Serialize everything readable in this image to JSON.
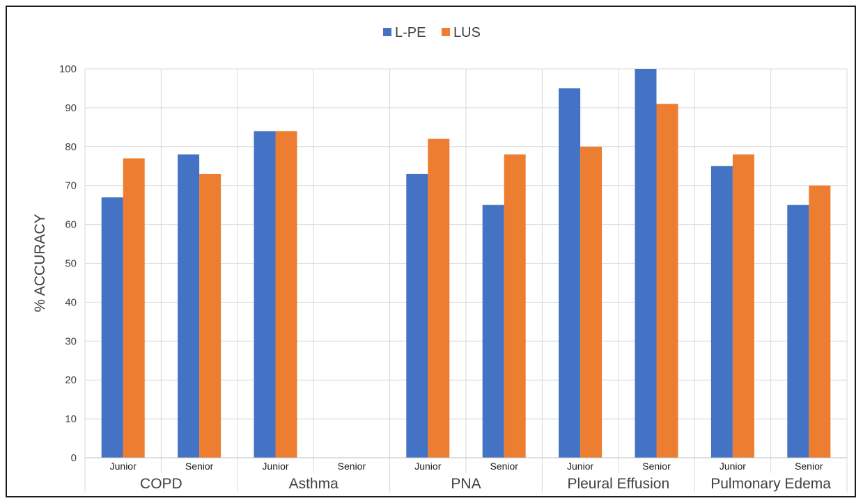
{
  "chart_data": {
    "type": "bar",
    "ylabel": "% ACCURACY",
    "ylim": [
      0,
      100
    ],
    "ytick_step": 10,
    "yticks": [
      "0",
      "10",
      "20",
      "30",
      "40",
      "50",
      "60",
      "70",
      "80",
      "90",
      "100"
    ],
    "grid": true,
    "legend_position": "top-center",
    "groups": [
      {
        "label": "COPD",
        "subcategories": [
          "Junior",
          "Senior"
        ]
      },
      {
        "label": "Asthma",
        "subcategories": [
          "Junior",
          "Senior"
        ]
      },
      {
        "label": "PNA",
        "subcategories": [
          "Junior",
          "Senior"
        ]
      },
      {
        "label": "Pleural Effusion",
        "subcategories": [
          "Junior",
          "Senior"
        ]
      },
      {
        "label": "Pulmonary Edema",
        "subcategories": [
          "Junior",
          "Senior"
        ]
      }
    ],
    "series": [
      {
        "name": "L-PE",
        "color": "#4472C4",
        "values": [
          67,
          78,
          84,
          null,
          73,
          65,
          95,
          100,
          75,
          65
        ]
      },
      {
        "name": "LUS",
        "color": "#ED7D31",
        "values": [
          77,
          73,
          84,
          null,
          82,
          78,
          80,
          91,
          78,
          70
        ]
      }
    ]
  }
}
